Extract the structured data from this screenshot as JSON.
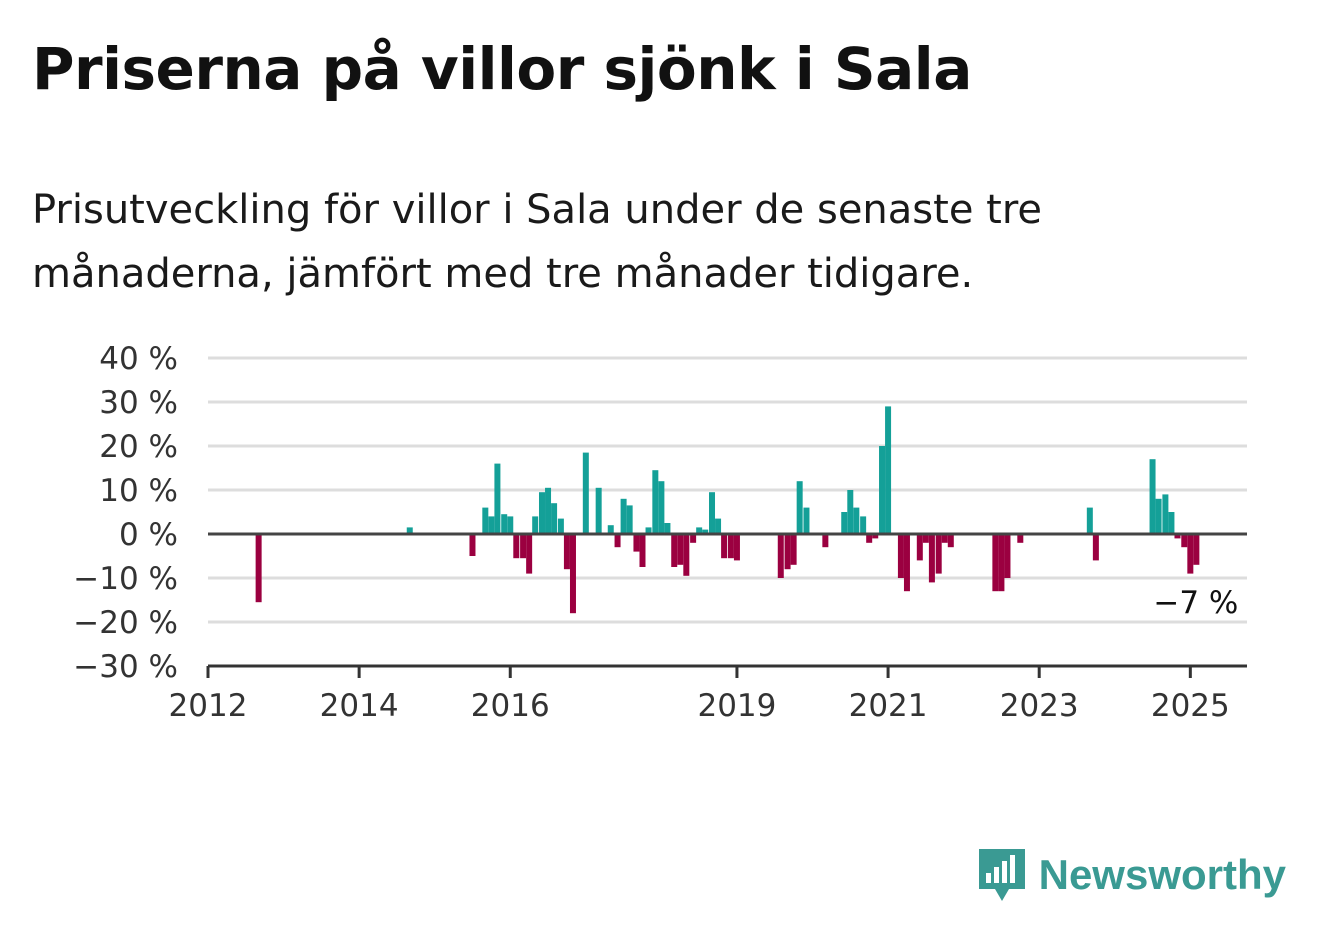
{
  "title": "Priserna på villor sjönk i Sala",
  "subtitle": "Prisutveckling för villor i Sala under de senaste tre månaderna, jämfört med tre månader tidigare.",
  "brand": {
    "name": "Newsworthy",
    "icon": "newsworthy-logo-icon",
    "color": "#3a9a93"
  },
  "chart_data": {
    "type": "bar",
    "y_tick_labels": [
      "40 %",
      "30 %",
      "20 %",
      "10 %",
      "0 %",
      "−10 %",
      "−20 %",
      "−30 %"
    ],
    "y_ticks": [
      40,
      30,
      20,
      10,
      0,
      -10,
      -20,
      -30
    ],
    "ylim": [
      -30,
      40
    ],
    "x_tick_labels": [
      "2012",
      "2014",
      "2016",
      "2019",
      "2021",
      "2023",
      "2025"
    ],
    "x_ticks": [
      2012,
      2014,
      2016,
      2019,
      2021,
      2023,
      2025
    ],
    "xlim": [
      2012,
      2025.75
    ],
    "grid": true,
    "positive_color": "#14a098",
    "negative_color": "#9b0040",
    "last_value_label": "−7 %",
    "x": [
      2012.67,
      2014.67,
      2015.5,
      2015.67,
      2015.75,
      2015.83,
      2015.92,
      2016.0,
      2016.08,
      2016.17,
      2016.25,
      2016.33,
      2016.42,
      2016.5,
      2016.58,
      2016.67,
      2016.75,
      2016.83,
      2017.0,
      2017.17,
      2017.33,
      2017.42,
      2017.5,
      2017.58,
      2017.67,
      2017.75,
      2017.83,
      2017.92,
      2018.0,
      2018.08,
      2018.17,
      2018.25,
      2018.33,
      2018.42,
      2018.5,
      2018.58,
      2018.67,
      2018.75,
      2018.83,
      2018.92,
      2019.0,
      2019.58,
      2019.67,
      2019.75,
      2019.83,
      2019.92,
      2020.17,
      2020.42,
      2020.5,
      2020.58,
      2020.67,
      2020.75,
      2020.83,
      2020.92,
      2021.0,
      2021.17,
      2021.25,
      2021.42,
      2021.5,
      2021.58,
      2021.67,
      2021.75,
      2021.83,
      2022.42,
      2022.5,
      2022.58,
      2022.75,
      2023.67,
      2023.75,
      2024.5,
      2024.58,
      2024.67,
      2024.75,
      2024.83,
      2024.92,
      2025.0,
      2025.08
    ],
    "values": [
      -15.5,
      1.5,
      -5,
      6,
      4,
      16,
      4.5,
      4,
      -5.5,
      -5.5,
      -9,
      4,
      9.5,
      10.5,
      7,
      3.5,
      -8,
      -18,
      18.5,
      10.5,
      2,
      -3,
      8,
      6.5,
      -4,
      -7.5,
      1.5,
      14.5,
      12,
      2.5,
      -7.5,
      -7,
      -9.5,
      -2,
      1.5,
      1,
      9.5,
      3.5,
      -5.5,
      -5.5,
      -6,
      -10,
      -8,
      -7,
      12,
      6,
      -3,
      5,
      10,
      6,
      4,
      -2,
      -1,
      20,
      29,
      -10,
      -13,
      -6,
      -2,
      -11,
      -9,
      -2,
      -3,
      -13,
      -13,
      -10,
      -2,
      6,
      -6,
      17,
      8,
      9,
      5,
      -1,
      -3,
      -9,
      -7
    ]
  }
}
